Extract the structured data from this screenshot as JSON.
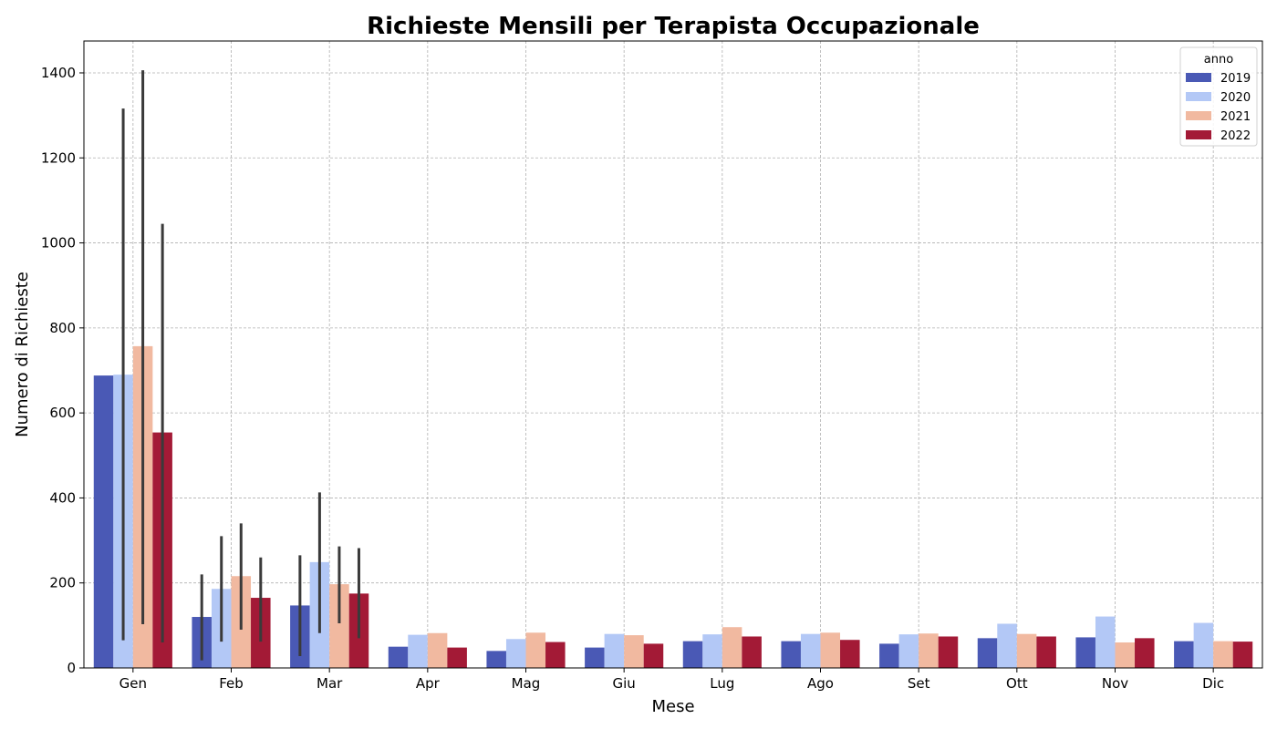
{
  "chart_data": {
    "type": "bar",
    "title": "Richieste Mensili per Terapista Occupazionale",
    "xlabel": "Mese",
    "ylabel": "Numero di Richieste",
    "ylim": [
      0,
      1475
    ],
    "yticks": [
      0,
      200,
      400,
      600,
      800,
      1000,
      1200,
      1400
    ],
    "grid": true,
    "legend": {
      "title": "anno",
      "placement": "top-right"
    },
    "categories": [
      "Gen",
      "Feb",
      "Mar",
      "Apr",
      "Mag",
      "Giu",
      "Lug",
      "Ago",
      "Set",
      "Ott",
      "Nov",
      "Dic"
    ],
    "series": [
      {
        "name": "2019",
        "color": "#4a59b5",
        "values": [
          688,
          120,
          147,
          50,
          40,
          48,
          63,
          63,
          57,
          70,
          72,
          63
        ],
        "error_low": [
          null,
          18,
          28,
          null,
          null,
          null,
          null,
          null,
          null,
          null,
          null,
          null
        ],
        "error_high": [
          null,
          220,
          265,
          null,
          null,
          null,
          null,
          null,
          null,
          null,
          null,
          null
        ]
      },
      {
        "name": "2020",
        "color": "#b3c8f6",
        "values": [
          690,
          186,
          249,
          78,
          68,
          80,
          79,
          80,
          79,
          104,
          121,
          106
        ],
        "error_low": [
          65,
          62,
          82,
          null,
          null,
          null,
          null,
          null,
          null,
          null,
          null,
          null
        ],
        "error_high": [
          1316,
          310,
          413,
          null,
          null,
          null,
          null,
          null,
          null,
          null,
          null,
          null
        ]
      },
      {
        "name": "2021",
        "color": "#f1b9a0",
        "values": [
          757,
          216,
          197,
          82,
          83,
          77,
          96,
          83,
          81,
          80,
          60,
          63
        ],
        "error_low": [
          103,
          90,
          105,
          null,
          null,
          null,
          null,
          null,
          null,
          null,
          null,
          null
        ],
        "error_high": [
          1406,
          340,
          286,
          null,
          null,
          null,
          null,
          null,
          null,
          null,
          null,
          null
        ]
      },
      {
        "name": "2022",
        "color": "#a31a36",
        "values": [
          554,
          165,
          175,
          48,
          61,
          57,
          74,
          66,
          74,
          74,
          70,
          62
        ],
        "error_low": [
          60,
          62,
          70,
          null,
          null,
          null,
          null,
          null,
          null,
          null,
          null,
          null
        ],
        "error_high": [
          1045,
          260,
          282,
          null,
          null,
          null,
          null,
          null,
          null,
          null,
          null,
          null
        ]
      }
    ]
  }
}
